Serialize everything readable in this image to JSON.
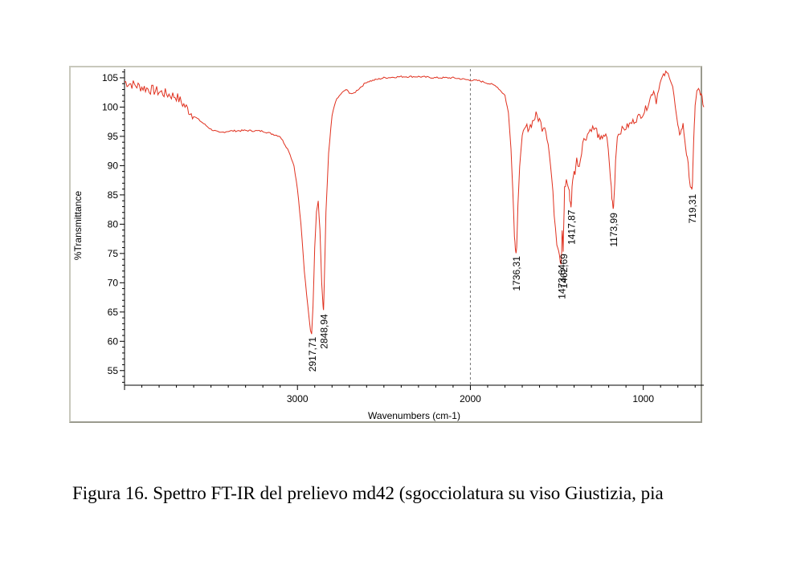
{
  "caption": "Figura 16. Spettro FT-IR del prelievo md42 (sgocciolatura su viso Giustizia, pia",
  "chart_data": {
    "type": "line",
    "title": "",
    "xlabel": "Wavenumbers (cm-1)",
    "ylabel": "%Transmittance",
    "xlim": [
      4000,
      650
    ],
    "ylim": [
      52.5,
      106.5
    ],
    "x_reversed": true,
    "x_ticks": [
      3000,
      2000,
      1000
    ],
    "y_ticks": [
      55,
      60,
      65,
      70,
      75,
      80,
      85,
      90,
      95,
      100,
      105
    ],
    "reference_line_x": 2000,
    "grid": false,
    "legend": "none",
    "series": [
      {
        "color": "#e0301e",
        "points": [
          [
            4000,
            104.3
          ],
          [
            3900,
            103.4
          ],
          [
            3800,
            102.6
          ],
          [
            3700,
            101.8
          ],
          [
            3600,
            98.5
          ],
          [
            3500,
            96.2
          ],
          [
            3450,
            95.6
          ],
          [
            3400,
            95.9
          ],
          [
            3300,
            96.0
          ],
          [
            3200,
            95.9
          ],
          [
            3100,
            95.0
          ],
          [
            3050,
            92.5
          ],
          [
            3020,
            90.0
          ],
          [
            3000,
            86.0
          ],
          [
            2980,
            80.0
          ],
          [
            2960,
            72.0
          ],
          [
            2940,
            66.0
          ],
          [
            2925,
            62.0
          ],
          [
            2918,
            61.3
          ],
          [
            2910,
            66.0
          ],
          [
            2900,
            76.0
          ],
          [
            2890,
            82.0
          ],
          [
            2880,
            84.0
          ],
          [
            2870,
            79.0
          ],
          [
            2860,
            70.0
          ],
          [
            2852,
            66.0
          ],
          [
            2849,
            65.2
          ],
          [
            2845,
            70.0
          ],
          [
            2835,
            82.0
          ],
          [
            2820,
            92.0
          ],
          [
            2800,
            98.5
          ],
          [
            2780,
            101.0
          ],
          [
            2750,
            102.2
          ],
          [
            2720,
            103.0
          ],
          [
            2700,
            102.5
          ],
          [
            2680,
            102.2
          ],
          [
            2650,
            103.0
          ],
          [
            2600,
            104.3
          ],
          [
            2500,
            105.0
          ],
          [
            2400,
            105.2
          ],
          [
            2300,
            105.2
          ],
          [
            2200,
            105.0
          ],
          [
            2100,
            105.0
          ],
          [
            2000,
            104.6
          ],
          [
            1950,
            104.5
          ],
          [
            1900,
            104.1
          ],
          [
            1850,
            103.6
          ],
          [
            1800,
            102.0
          ],
          [
            1780,
            99.0
          ],
          [
            1765,
            93.0
          ],
          [
            1755,
            86.0
          ],
          [
            1745,
            78.0
          ],
          [
            1740,
            76.0
          ],
          [
            1736,
            75.1
          ],
          [
            1732,
            76.0
          ],
          [
            1725,
            83.0
          ],
          [
            1715,
            90.0
          ],
          [
            1700,
            95.0
          ],
          [
            1680,
            96.5
          ],
          [
            1660,
            96.5
          ],
          [
            1640,
            97.5
          ],
          [
            1620,
            98.6
          ],
          [
            1600,
            97.8
          ],
          [
            1585,
            96.5
          ],
          [
            1570,
            97.0
          ],
          [
            1550,
            94.0
          ],
          [
            1530,
            88.0
          ],
          [
            1515,
            82.0
          ],
          [
            1500,
            77.0
          ],
          [
            1490,
            76.0
          ],
          [
            1480,
            74.0
          ],
          [
            1475,
            73.7
          ],
          [
            1472,
            75.5
          ],
          [
            1469,
            79.0
          ],
          [
            1466,
            77.0
          ],
          [
            1463,
            75.5
          ],
          [
            1460,
            80.0
          ],
          [
            1455,
            86.0
          ],
          [
            1445,
            87.5
          ],
          [
            1430,
            86.0
          ],
          [
            1425,
            84.5
          ],
          [
            1418,
            83.0
          ],
          [
            1412,
            86.0
          ],
          [
            1405,
            88.5
          ],
          [
            1395,
            89.0
          ],
          [
            1385,
            91.0
          ],
          [
            1370,
            90.0
          ],
          [
            1350,
            94.0
          ],
          [
            1330,
            95.0
          ],
          [
            1300,
            96.5
          ],
          [
            1270,
            96.0
          ],
          [
            1250,
            94.0
          ],
          [
            1230,
            95.5
          ],
          [
            1210,
            94.5
          ],
          [
            1195,
            90.0
          ],
          [
            1185,
            86.0
          ],
          [
            1178,
            83.5
          ],
          [
            1174,
            82.5
          ],
          [
            1170,
            84.0
          ],
          [
            1160,
            91.0
          ],
          [
            1150,
            95.0
          ],
          [
            1130,
            96.0
          ],
          [
            1100,
            96.5
          ],
          [
            1080,
            97.0
          ],
          [
            1060,
            97.5
          ],
          [
            1040,
            98.0
          ],
          [
            1020,
            98.5
          ],
          [
            1000,
            99.0
          ],
          [
            980,
            100.0
          ],
          [
            960,
            101.5
          ],
          [
            940,
            103.0
          ],
          [
            925,
            101.0
          ],
          [
            910,
            103.5
          ],
          [
            890,
            105.0
          ],
          [
            870,
            105.8
          ],
          [
            850,
            105.5
          ],
          [
            830,
            103.5
          ],
          [
            815,
            100.0
          ],
          [
            800,
            96.5
          ],
          [
            790,
            95.5
          ],
          [
            780,
            96.0
          ],
          [
            770,
            97.0
          ],
          [
            760,
            94.5
          ],
          [
            750,
            92.0
          ],
          [
            740,
            90.0
          ],
          [
            730,
            87.0
          ],
          [
            725,
            86.0
          ],
          [
            719,
            85.7
          ],
          [
            715,
            87.5
          ],
          [
            712,
            91.0
          ],
          [
            705,
            97.0
          ],
          [
            700,
            100.0
          ],
          [
            690,
            102.5
          ],
          [
            680,
            103.0
          ],
          [
            670,
            102.5
          ],
          [
            660,
            101.5
          ],
          [
            650,
            100.0
          ]
        ]
      }
    ],
    "annotations": [
      {
        "x": 2917.71,
        "y": 61.3,
        "text": "2917,71"
      },
      {
        "x": 2848.94,
        "y": 65.2,
        "text": "2848,94"
      },
      {
        "x": 1736.31,
        "y": 75.1,
        "text": "1736,31"
      },
      {
        "x": 1473.64,
        "y": 73.7,
        "text": "1473,64"
      },
      {
        "x": 1462.69,
        "y": 75.5,
        "text": "1462,69"
      },
      {
        "x": 1417.87,
        "y": 83.0,
        "text": "1417,87"
      },
      {
        "x": 1173.99,
        "y": 82.5,
        "text": "1173,99"
      },
      {
        "x": 719.31,
        "y": 85.7,
        "text": "719,31"
      }
    ]
  }
}
